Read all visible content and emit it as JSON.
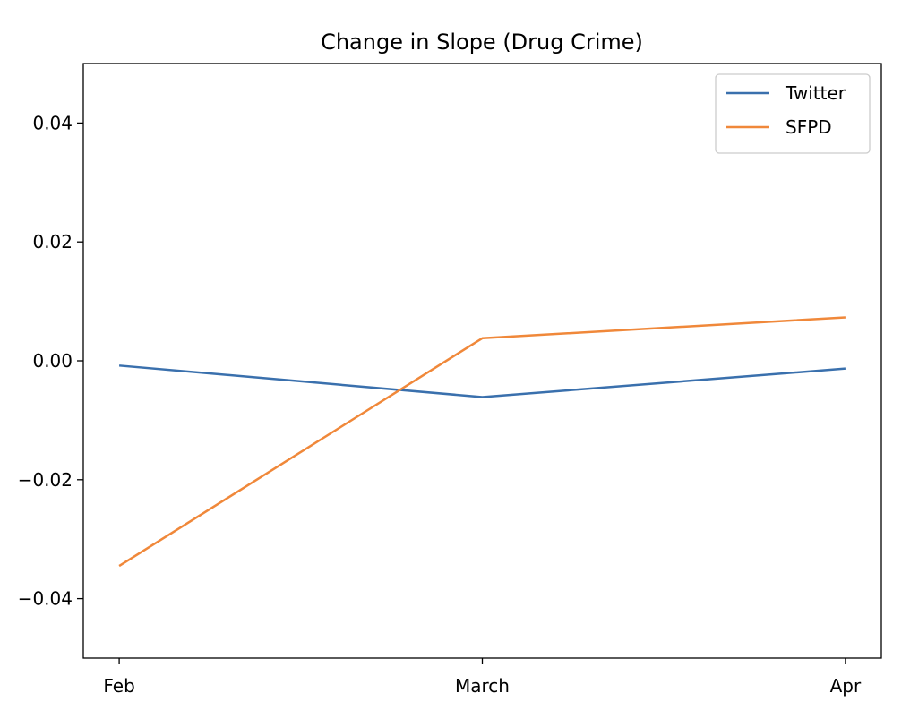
{
  "chart_data": {
    "type": "line",
    "title": "Change in Slope (Drug Crime)",
    "xlabel": "",
    "ylabel": "",
    "categories": [
      "Feb",
      "March",
      "Apr"
    ],
    "ylim": [
      -0.05,
      0.05
    ],
    "yticks": [
      -0.04,
      -0.02,
      0.0,
      0.02,
      0.04
    ],
    "ytick_labels": [
      "−0.04",
      "−0.02",
      "0.00",
      "0.02",
      "0.04"
    ],
    "grid": false,
    "legend_position": "top-right",
    "series": [
      {
        "name": "Twitter",
        "color": "#3a70ad",
        "values": [
          -0.0008,
          -0.0061,
          -0.0013
        ]
      },
      {
        "name": "SFPD",
        "color": "#f0883a",
        "values": [
          -0.0345,
          0.0038,
          0.0073
        ]
      }
    ]
  }
}
